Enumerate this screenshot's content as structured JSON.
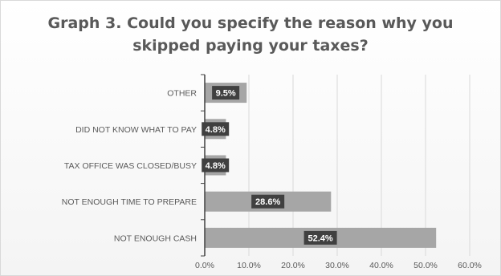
{
  "chart_data": {
    "type": "bar",
    "orientation": "horizontal",
    "title": "Graph 3. Could you specify the reason why you\nskipped paying your taxes?",
    "categories": [
      "OTHER",
      "DID NOT KNOW WHAT TO PAY",
      "TAX OFFICE WAS CLOSED/BUSY",
      "NOT ENOUGH TIME TO PREPARE",
      "NOT ENOUGH CASH"
    ],
    "values": [
      9.5,
      4.8,
      4.8,
      28.6,
      52.4
    ],
    "value_labels": [
      "9.5%",
      "4.8%",
      "4.8%",
      "28.6%",
      "52.4%"
    ],
    "x_ticks": [
      "0.0%",
      "10.0%",
      "20.0%",
      "30.0%",
      "40.0%",
      "50.0%",
      "60.0%"
    ],
    "xlim": [
      0,
      60
    ],
    "grid": true,
    "colors": {
      "bar": "#a6a6a6",
      "label_bg": "#404040",
      "label_text": "#ffffff",
      "grid": "#d9d9d9",
      "text": "#595959",
      "axis": "#404040"
    }
  }
}
